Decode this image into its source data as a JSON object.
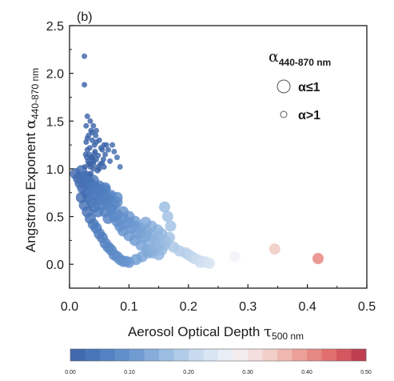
{
  "chart_data": {
    "type": "scatter",
    "panel_label": "(b)",
    "xlabel": "Aerosol Optical Depth",
    "xlabel_symbol": "τ",
    "xlabel_sub": "500 nm",
    "ylabel": "Angstrom Exponent",
    "ylabel_symbol": "α",
    "ylabel_sub": "440-870 nm",
    "xlim": [
      0,
      0.5
    ],
    "ylim": [
      -0.25,
      2.5
    ],
    "xticks": [
      "0.0",
      "0.1",
      "0.2",
      "0.3",
      "0.4",
      "0.5"
    ],
    "xtick_values": [
      0,
      0.1,
      0.2,
      0.3,
      0.4,
      0.5
    ],
    "yticks": [
      "0.0",
      "0.5",
      "1.0",
      "1.5",
      "2.0",
      "2.5"
    ],
    "ytick_values": [
      0,
      0.5,
      1.0,
      1.5,
      2.0,
      2.5
    ],
    "grid": false,
    "legend": {
      "title_symbol": "α",
      "title_sub": "440-870 nm",
      "entries": [
        {
          "label": "α≤1",
          "size": "large"
        },
        {
          "label": "α>1",
          "size": "small"
        }
      ],
      "placement": "top-right"
    },
    "colorbar": {
      "ticks": [
        "0.00",
        "0.10",
        "0.20",
        "0.30",
        "0.40",
        "0.50"
      ],
      "tick_values": [
        0,
        0.1,
        0.2,
        0.3,
        0.4,
        0.5
      ],
      "range": [
        0,
        0.5
      ],
      "colors": [
        "#3c64a8",
        "#4f7ec0",
        "#6f9bd2",
        "#9fc0e3",
        "#cfe0f1",
        "#f3f3f8",
        "#f3d3cc",
        "#ec9f97",
        "#df6868",
        "#b6334a"
      ]
    },
    "series": [
      {
        "x": [
          0.025,
          0.025,
          0.03,
          0.035,
          0.04,
          0.045,
          0.028,
          0.032,
          0.038,
          0.042,
          0.05,
          0.055,
          0.033,
          0.037,
          0.03,
          0.035,
          0.04,
          0.045,
          0.036,
          0.052,
          0.06,
          0.041,
          0.048,
          0.043,
          0.028,
          0.034,
          0.039,
          0.047,
          0.057,
          0.044,
          0.036,
          0.062,
          0.032,
          0.053,
          0.045,
          0.038,
          0.03,
          0.055,
          0.042,
          0.048,
          0.035,
          0.058,
          0.04,
          0.05,
          0.037,
          0.065,
          0.068,
          0.072,
          0.075,
          0.08,
          0.085,
          0.058,
          0.026,
          0.031,
          0.029,
          0.027
        ],
        "y": [
          2.18,
          1.88,
          1.55,
          1.5,
          1.45,
          1.4,
          1.45,
          1.35,
          1.3,
          1.25,
          1.3,
          1.2,
          1.15,
          1.1,
          1.2,
          1.05,
          1.0,
          1.1,
          0.95,
          1.05,
          1.15,
          1.08,
          1.02,
          1.18,
          1.28,
          1.22,
          1.12,
          0.98,
          1.1,
          1.35,
          1.4,
          1.25,
          1.05,
          1.22,
          1.28,
          1.38,
          1.32,
          1.06,
          1.16,
          1.14,
          1.02,
          1.02,
          1.05,
          1.0,
          1.12,
          1.2,
          1.08,
          1.25,
          1.18,
          1.12,
          1.02,
          1.25,
          1.02,
          1.08,
          1.12,
          1.15
        ]
      },
      {
        "x": [
          0.01,
          0.015,
          0.018,
          0.02,
          0.022,
          0.025,
          0.028,
          0.03,
          0.032,
          0.035,
          0.038,
          0.04,
          0.042,
          0.045,
          0.048,
          0.05,
          0.055,
          0.06,
          0.065,
          0.07,
          0.075,
          0.08,
          0.085,
          0.09,
          0.095,
          0.1,
          0.105,
          0.11,
          0.115,
          0.12,
          0.125,
          0.13,
          0.135,
          0.14,
          0.145,
          0.15,
          0.155,
          0.16,
          0.165,
          0.17,
          0.02,
          0.025,
          0.03,
          0.035,
          0.04,
          0.045,
          0.05,
          0.055,
          0.06,
          0.065,
          0.07,
          0.075,
          0.08,
          0.085,
          0.09,
          0.095,
          0.1,
          0.06,
          0.07,
          0.08,
          0.09,
          0.1,
          0.11,
          0.12,
          0.13,
          0.14,
          0.15,
          0.16,
          0.2,
          0.21,
          0.22,
          0.23,
          0.278,
          0.345,
          0.418,
          0.03,
          0.04,
          0.05,
          0.06,
          0.07,
          0.08,
          0.025,
          0.035,
          0.045,
          0.055,
          0.065,
          0.075,
          0.03,
          0.04,
          0.05,
          0.06,
          0.07,
          0.08,
          0.09,
          0.1,
          0.11,
          0.12,
          0.13,
          0.145,
          0.15,
          0.175,
          0.185,
          0.195,
          0.205,
          0.215,
          0.225,
          0.235,
          0.112,
          0.122,
          0.132,
          0.142,
          0.152,
          0.162,
          0.168,
          0.155,
          0.148,
          0.138,
          0.128
        ],
        "y": [
          0.95,
          0.9,
          0.85,
          0.98,
          0.8,
          0.92,
          0.75,
          0.88,
          0.7,
          0.82,
          0.65,
          0.78,
          0.6,
          0.72,
          0.55,
          0.68,
          0.62,
          0.55,
          0.48,
          0.58,
          0.5,
          0.45,
          0.4,
          0.35,
          0.42,
          0.3,
          0.38,
          0.25,
          0.32,
          0.2,
          0.28,
          0.15,
          0.22,
          0.12,
          0.18,
          0.1,
          0.15,
          0.6,
          0.5,
          0.4,
          0.7,
          0.62,
          0.55,
          0.48,
          0.42,
          0.38,
          0.32,
          0.28,
          0.22,
          0.18,
          0.15,
          0.1,
          0.08,
          0.05,
          0.03,
          0.03,
          0.02,
          0.8,
          0.7,
          0.65,
          0.55,
          0.5,
          0.45,
          0.38,
          0.35,
          0.3,
          0.28,
          0.2,
          0.1,
          0.06,
          0.02,
          0.02,
          0.08,
          0.16,
          0.06,
          0.85,
          0.88,
          0.82,
          0.78,
          0.72,
          0.7,
          0.9,
          0.85,
          0.8,
          0.75,
          0.68,
          0.62,
          0.92,
          0.82,
          0.76,
          0.66,
          0.58,
          0.52,
          0.48,
          0.44,
          0.4,
          0.34,
          0.3,
          0.26,
          0.22,
          0.18,
          0.14,
          0.12,
          0.08,
          0.05,
          0.03,
          0.01,
          0.05,
          0.08,
          0.12,
          0.16,
          0.2,
          0.24,
          0.28,
          0.32,
          0.36,
          0.4,
          0.44
        ]
      }
    ]
  }
}
